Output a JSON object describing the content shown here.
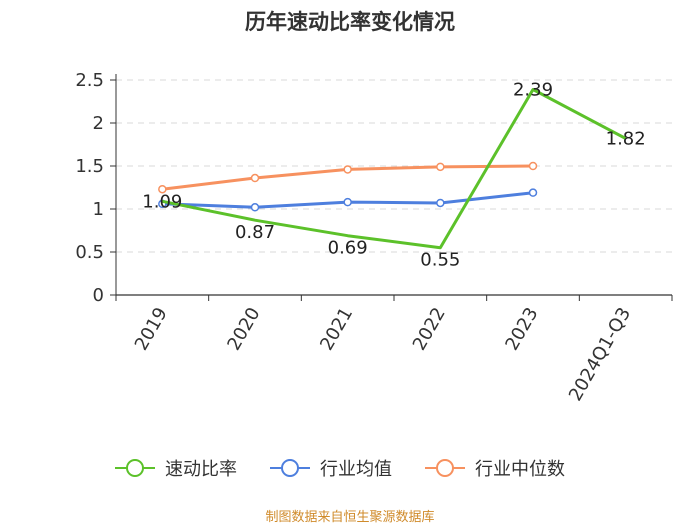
{
  "chart_data": {
    "type": "line",
    "title": "历年速动比率变化情况",
    "categories": [
      "2019",
      "2020",
      "2021",
      "2022",
      "2023",
      "2024Q1-Q3"
    ],
    "ylim": [
      0,
      2.5
    ],
    "yticks": [
      "0",
      "0.5",
      "1",
      "1.5",
      "2",
      "2.5"
    ],
    "grid": true,
    "legend_position": "bottom",
    "series": [
      {
        "name": "速动比率",
        "color": "#5cc12a",
        "values": [
          1.09,
          0.87,
          0.69,
          0.55,
          2.39,
          1.82
        ],
        "labels": [
          "1.09",
          "0.87",
          "0.69",
          "0.55",
          "2.39",
          "1.82"
        ]
      },
      {
        "name": "行业均值",
        "color": "#4e7fde",
        "values": [
          1.06,
          1.02,
          1.08,
          1.07,
          1.19,
          null
        ]
      },
      {
        "name": "行业中位数",
        "color": "#f7915f",
        "values": [
          1.23,
          1.36,
          1.46,
          1.49,
          1.5,
          null
        ]
      }
    ]
  },
  "footer": "制图数据来自恒生聚源数据库"
}
